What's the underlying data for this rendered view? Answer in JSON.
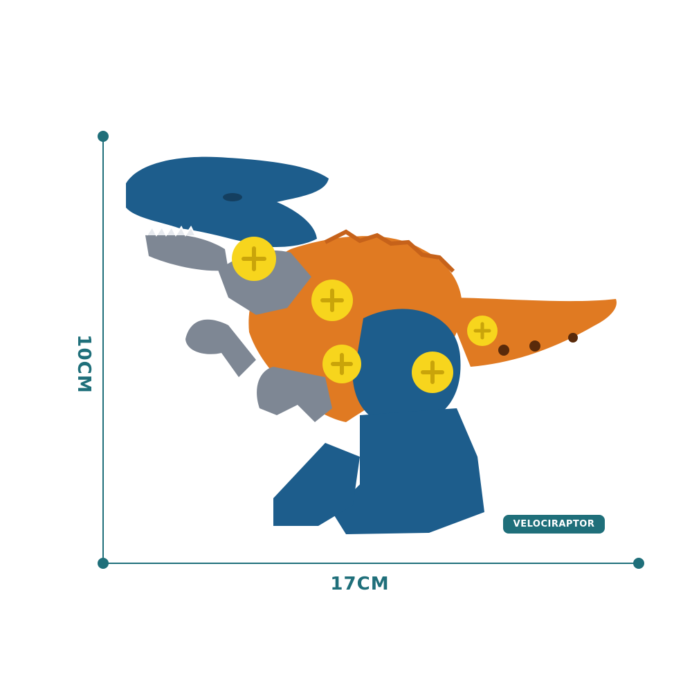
{
  "measurements": {
    "height_label": "10CM",
    "width_label": "17CM"
  },
  "product": {
    "name_badge": "VELOCIRAPTOR"
  },
  "colors": {
    "accent": "#1f6f7a",
    "dino_blue": "#1d5d8c",
    "dino_orange": "#e07a22",
    "dino_gray": "#7e8794",
    "screw_yellow": "#f7d51d"
  }
}
